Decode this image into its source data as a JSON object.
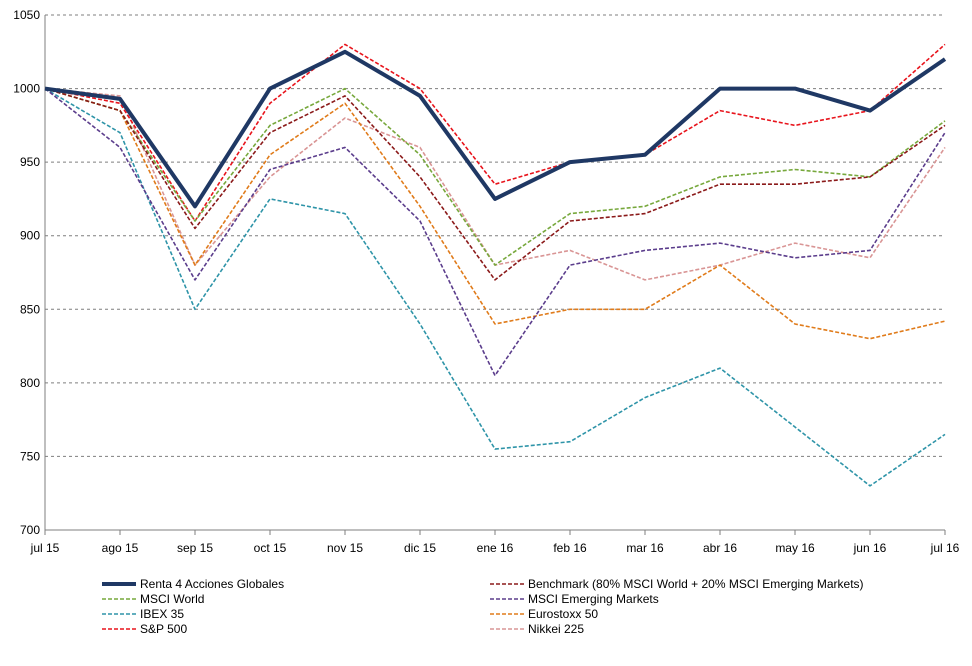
{
  "chart_data": {
    "type": "line",
    "title": "",
    "xlabel": "",
    "ylabel": "",
    "ylim": [
      700,
      1050
    ],
    "yticks": [
      700,
      750,
      800,
      850,
      900,
      950,
      1000,
      1050
    ],
    "grid": "horizontal dashed",
    "legend_position": "bottom",
    "x": [
      "jul 15",
      "ago 15",
      "sep 15",
      "oct 15",
      "nov 15",
      "dic 15",
      "ene 16",
      "feb 16",
      "mar 16",
      "abr 16",
      "may 16",
      "jun 16",
      "jul 16"
    ],
    "series": [
      {
        "name": "Renta 4 Acciones Globales",
        "color": "#1f3864",
        "style": "solid",
        "values": [
          1000,
          993,
          920,
          1000,
          1025,
          995,
          925,
          950,
          955,
          1000,
          1000,
          985,
          1020
        ]
      },
      {
        "name": "Benchmark (80% MSCI World + 20% MSCI Emerging Markets)",
        "color": "#8b1a1a",
        "style": "dashed",
        "values": [
          1000,
          985,
          905,
          970,
          995,
          940,
          870,
          910,
          915,
          935,
          935,
          940,
          975
        ]
      },
      {
        "name": "MSCI World",
        "color": "#77a83c",
        "style": "dashed",
        "values": [
          1000,
          985,
          910,
          975,
          1000,
          955,
          880,
          915,
          920,
          940,
          945,
          940,
          978
        ]
      },
      {
        "name": "MSCI Emerging Markets",
        "color": "#5b3d8c",
        "style": "dashed",
        "values": [
          1000,
          960,
          870,
          945,
          960,
          910,
          805,
          880,
          890,
          895,
          885,
          890,
          970
        ]
      },
      {
        "name": "IBEX 35",
        "color": "#2e94a8",
        "style": "dashed",
        "values": [
          1000,
          970,
          850,
          925,
          915,
          840,
          755,
          760,
          790,
          810,
          770,
          730,
          765
        ]
      },
      {
        "name": "Eurostoxx 50",
        "color": "#e07b1a",
        "style": "dashed",
        "values": [
          1000,
          985,
          880,
          955,
          990,
          920,
          840,
          850,
          850,
          880,
          840,
          830,
          842
        ]
      },
      {
        "name": "S&P 500",
        "color": "#e8141c",
        "style": "dashed",
        "values": [
          1000,
          990,
          910,
          990,
          1030,
          1000,
          935,
          950,
          955,
          985,
          975,
          985,
          1030
        ]
      },
      {
        "name": "Nikkei 225",
        "color": "#d99595",
        "style": "dashed",
        "values": [
          1000,
          995,
          880,
          940,
          980,
          960,
          880,
          890,
          870,
          880,
          895,
          885,
          960
        ]
      }
    ]
  },
  "legend": {
    "left": [
      "Renta 4 Acciones Globales",
      "MSCI World",
      "IBEX 35",
      "S&P 500"
    ],
    "right": [
      "Benchmark (80% MSCI World + 20% MSCI Emerging Markets)",
      "MSCI Emerging Markets",
      "Eurostoxx 50",
      "Nikkei 225"
    ]
  }
}
